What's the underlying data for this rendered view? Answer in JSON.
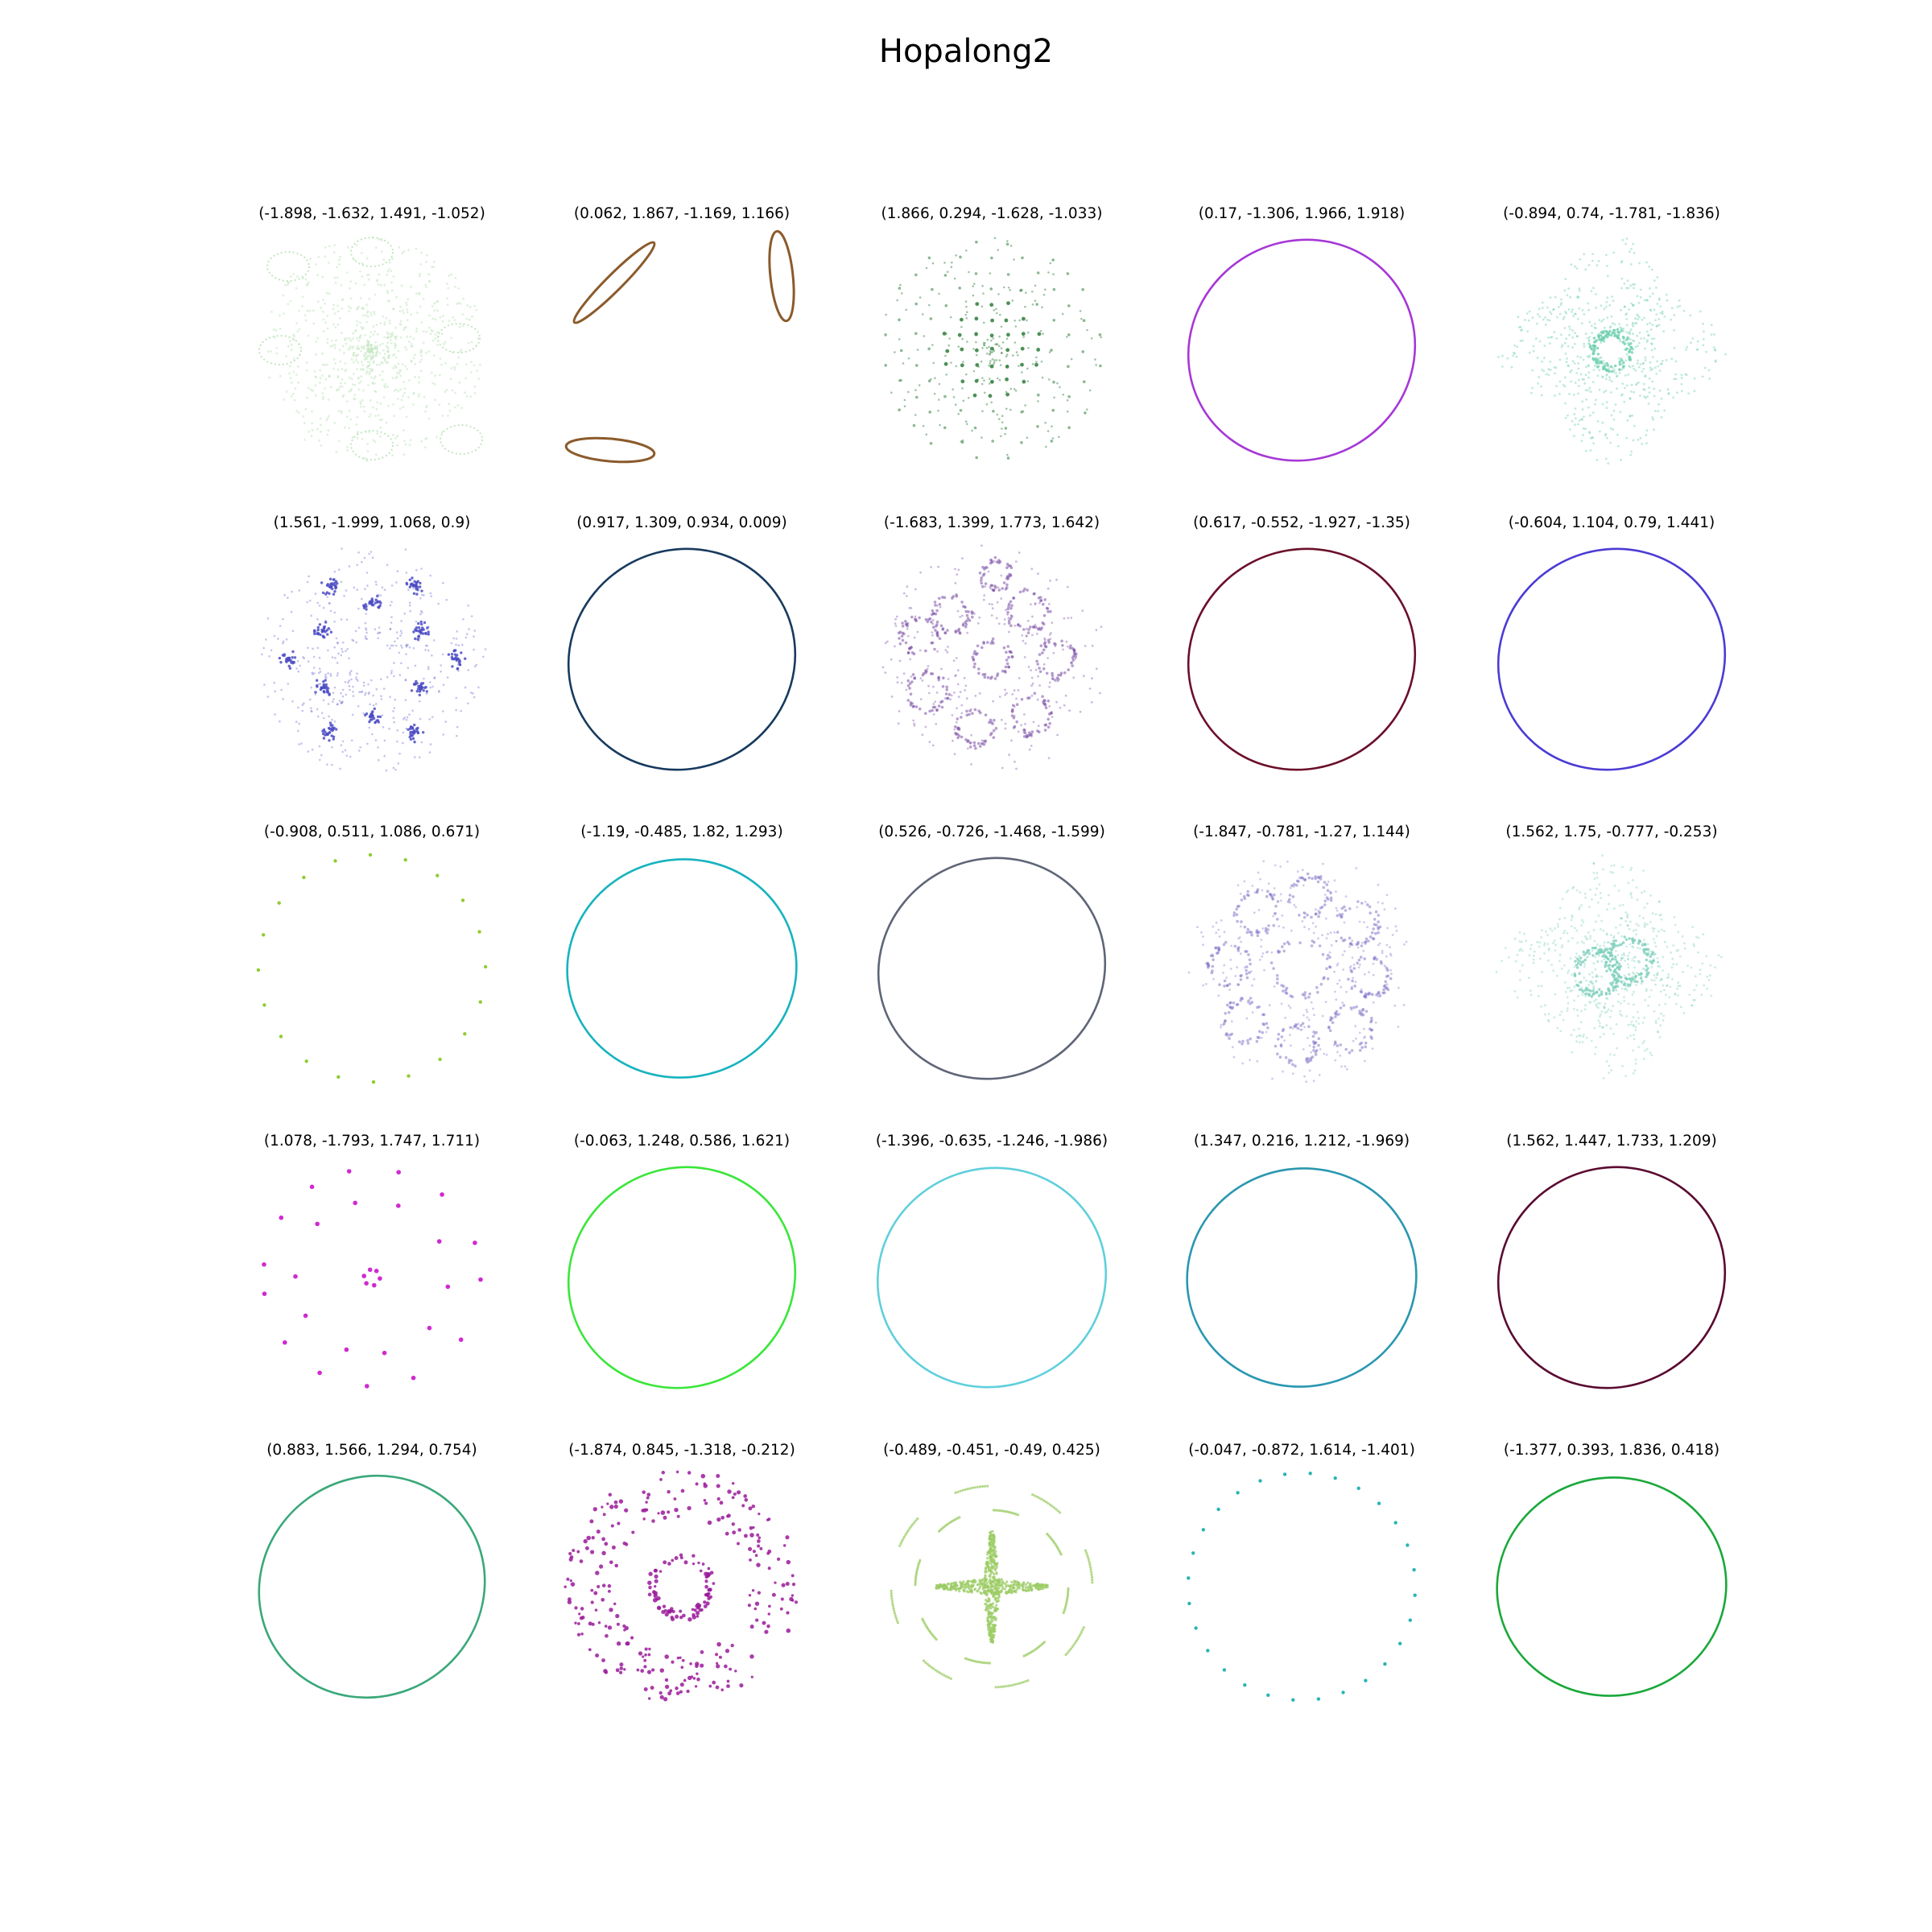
{
  "figure": {
    "title": "Hopalong2"
  },
  "chart_data": [
    {
      "type": "scatter",
      "title": "(-1.898, -1.632, 1.491, -1.052)",
      "color": "#c3e6bf",
      "pattern": "flower-cloud",
      "opacity": 0.55
    },
    {
      "type": "line",
      "title": "(0.062, 1.867, -1.169, 1.166)",
      "color": "#8b5a2b",
      "pattern": "three-ellipses"
    },
    {
      "type": "scatter",
      "title": "(1.866, 0.294, -1.628, -1.033)",
      "color": "#2e7d3a",
      "pattern": "lattice",
      "opacity": 0.6
    },
    {
      "type": "line",
      "title": "(0.17, -1.306, 1.966, 1.918)",
      "color": "#a637d6",
      "pattern": "ring",
      "tilt": -30
    },
    {
      "type": "scatter",
      "title": "(-0.894, 0.74, -1.781, -1.836)",
      "color": "#6fcfb0",
      "pattern": "star-lattice",
      "opacity": 0.55
    },
    {
      "type": "scatter",
      "title": "(1.561, -1.999, 1.068, 0.9)",
      "color": "#4c4cc4",
      "pattern": "rosette",
      "opacity": 0.55
    },
    {
      "type": "line",
      "title": "(0.917, 1.309, 0.934, 0.009)",
      "color": "#173a5e",
      "pattern": "ring",
      "tilt": -30
    },
    {
      "type": "scatter",
      "title": "(-1.683, 1.399, 1.773, 1.642)",
      "color": "#7a4ea6",
      "pattern": "bubbles",
      "opacity": 0.55
    },
    {
      "type": "line",
      "title": "(0.617, -0.552, -1.927, -1.35)",
      "color": "#6b0f2a",
      "pattern": "ring",
      "tilt": -30
    },
    {
      "type": "line",
      "title": "(-0.604, 1.104, 0.79, 1.441)",
      "color": "#4b3bd4",
      "pattern": "ring",
      "tilt": -30
    },
    {
      "type": "scatter",
      "title": "(-0.908, 0.511, 1.086, 0.671)",
      "color": "#8ac926",
      "pattern": "dot-ring",
      "count": 20
    },
    {
      "type": "line",
      "title": "(-1.19, -0.485, 1.82, 1.293)",
      "color": "#17b3bf",
      "pattern": "ring",
      "tilt": -10
    },
    {
      "type": "line",
      "title": "(0.526, -0.726, -1.468, -1.599)",
      "color": "#5f6577",
      "pattern": "ring",
      "tilt": -30
    },
    {
      "type": "scatter",
      "title": "(-1.847, -0.781, -1.27, 1.144)",
      "color": "#7a6ac4",
      "pattern": "bubbles-wide",
      "opacity": 0.5
    },
    {
      "type": "scatter",
      "title": "(1.562, 1.75, -0.777, -0.253)",
      "color": "#7fcfbb",
      "pattern": "star-core",
      "opacity": 0.5
    },
    {
      "type": "scatter",
      "title": "(1.078, -1.793, 1.747, 1.711)",
      "color": "#cc1fcc",
      "pattern": "island-dots"
    },
    {
      "type": "line",
      "title": "(-0.063, 1.248, 0.586, 1.621)",
      "color": "#3ae63a",
      "pattern": "ring",
      "tilt": -30
    },
    {
      "type": "line",
      "title": "(-1.396, -0.635, -1.246, -1.986)",
      "color": "#5fcfdc",
      "pattern": "ring",
      "tilt": -20
    },
    {
      "type": "line",
      "title": "(1.347, 0.216, 1.212, -1.969)",
      "color": "#2a97b0",
      "pattern": "ring",
      "tilt": -10
    },
    {
      "type": "line",
      "title": "(1.562, 1.447, 1.733, 1.209)",
      "color": "#5a0a30",
      "pattern": "ring",
      "tilt": -30
    },
    {
      "type": "line",
      "title": "(0.883, 1.566, 1.294, 0.754)",
      "color": "#3aa87a",
      "pattern": "ring",
      "tilt": -35
    },
    {
      "type": "scatter",
      "title": "(-1.874, 0.845, -1.318, -0.212)",
      "color": "#9a1a9a",
      "pattern": "ring-clusters"
    },
    {
      "type": "scatter",
      "title": "(-0.489, -0.451, -0.49, 0.425)",
      "color": "#9ccc66",
      "pattern": "cross-star",
      "opacity": 0.75
    },
    {
      "type": "scatter",
      "title": "(-0.047, -0.872, 1.614, -1.401)",
      "color": "#1fb0b0",
      "pattern": "dot-ring",
      "count": 28
    },
    {
      "type": "line",
      "title": "(-1.377, 0.393, 1.836, 0.418)",
      "color": "#1aa83a",
      "pattern": "ring",
      "tilt": -10
    }
  ]
}
